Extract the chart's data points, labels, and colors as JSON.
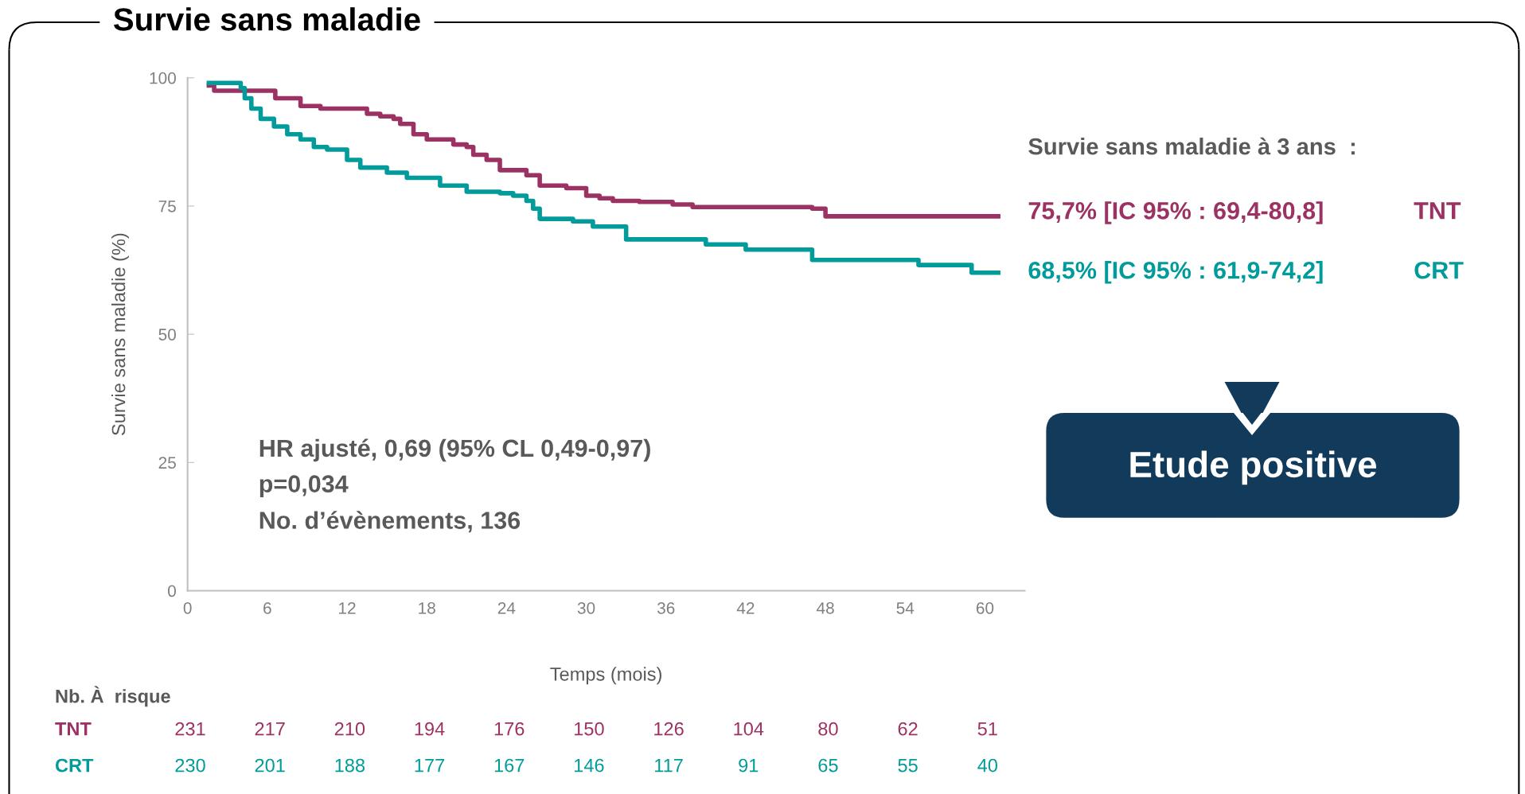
{
  "chart_data": {
    "type": "step",
    "title": "Survie sans maladie",
    "xlabel": "Temps (mois)",
    "ylabel": "Survie sans maladie (%)",
    "xlim": [
      0,
      63
    ],
    "xticks": [
      0,
      6,
      12,
      18,
      24,
      30,
      36,
      42,
      48,
      54,
      60
    ],
    "ylim": [
      0,
      100
    ],
    "yticks": [
      0,
      25,
      50,
      75,
      100
    ],
    "grid": false,
    "legend": false,
    "series": [
      {
        "name": "TNT",
        "color": "#9b3263",
        "x": [
          1.6,
          2,
          6.6,
          8.5,
          10,
          13.5,
          14.5,
          15.5,
          16,
          17,
          18,
          20,
          21,
          21.5,
          22.5,
          23.5,
          25.5,
          26.5,
          28.5,
          30,
          31,
          32,
          34,
          36.5,
          38,
          47,
          48,
          61
        ],
        "values": [
          98.5,
          97.5,
          96,
          94.5,
          94,
          93,
          92.5,
          92,
          91,
          89,
          88,
          87,
          86.5,
          85,
          84,
          82,
          81,
          79,
          78.5,
          77,
          76.5,
          76,
          75.8,
          75.3,
          74.8,
          74.5,
          73,
          73
        ]
      },
      {
        "name": "CRT",
        "color": "#009b9a",
        "x": [
          1.6,
          4,
          4.3,
          4.8,
          5.5,
          6.5,
          7.5,
          8.5,
          9.5,
          10.5,
          12,
          13,
          15,
          16.5,
          19,
          21,
          23.5,
          24.5,
          25.5,
          26,
          26.5,
          29,
          30.5,
          33,
          37,
          39,
          42,
          47,
          55,
          59,
          61
        ],
        "values": [
          99,
          98,
          96,
          94,
          92,
          90.5,
          89,
          88,
          86.5,
          86,
          84,
          82.5,
          81.5,
          80.5,
          79,
          77.8,
          77.5,
          77,
          76,
          74.5,
          72.5,
          72,
          71,
          68.5,
          68.5,
          67.5,
          66.5,
          64.5,
          63.5,
          62,
          62
        ]
      }
    ],
    "annotations": [
      "Survie sans maladie à 3 ans  :",
      "75,7% [IC 95% : 69,4-80,8]",
      "68,5% [IC 95% : 61,9-74,2]",
      "Etude positive",
      "HR ajusté, 0,69 (95% CL 0,49-0,97)",
      "p=0,034",
      "No. d’évènements, 136",
      "Nb. À  risque",
      "231",
      "217",
      "210",
      "194",
      "176",
      "150",
      "126",
      "104",
      "80",
      "62",
      "51",
      "230",
      "201",
      "188",
      "177",
      "167",
      "146",
      "117",
      "91",
      "65",
      "55",
      "40"
    ]
  }
}
